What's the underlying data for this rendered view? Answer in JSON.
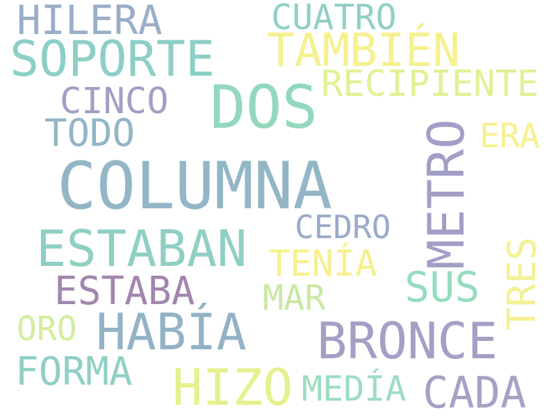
{
  "words": [
    {
      "text": "COLUMNA",
      "color": "#93b6c6"
    },
    {
      "text": "DOS",
      "color": "#93d8bd"
    },
    {
      "text": "METRO",
      "color": "#a29fc6"
    },
    {
      "text": "ESTABAN",
      "color": "#90cfc3"
    },
    {
      "text": "HABÍA",
      "color": "#93b2c6"
    },
    {
      "text": "BRONCE",
      "color": "#a39fc5"
    },
    {
      "text": "SOPORTE",
      "color": "#8ccfc6"
    },
    {
      "text": "TAMBIÉN",
      "color": "#f6f08f"
    },
    {
      "text": "HIZO",
      "color": "#e6f08d"
    },
    {
      "text": "SUS",
      "color": "#96dcbd"
    },
    {
      "text": "CADA",
      "color": "#a5a2c4"
    },
    {
      "text": "ESTABA",
      "color": "#a186ad"
    },
    {
      "text": "TRES",
      "color": "#f4f096"
    },
    {
      "text": "TENÍA",
      "color": "#f7f08c"
    },
    {
      "text": "RECIPIENTE",
      "color": "#e1f094"
    },
    {
      "text": "HILERA",
      "color": "#9aaec9"
    },
    {
      "text": "TODO",
      "color": "#93b5c6"
    },
    {
      "text": "CINCO",
      "color": "#a39ec4"
    },
    {
      "text": "FORMA",
      "color": "#8fcfc6"
    },
    {
      "text": "CEDRO",
      "color": "#9aabc8"
    },
    {
      "text": "CUATRO",
      "color": "#90cfc6"
    },
    {
      "text": "MEDÍA",
      "color": "#9ddcc2"
    },
    {
      "text": "MAR",
      "color": "#c9e8a2"
    },
    {
      "text": "ERA",
      "color": "#f6f08f"
    },
    {
      "text": "ORO",
      "color": "#d2ee9b"
    }
  ]
}
